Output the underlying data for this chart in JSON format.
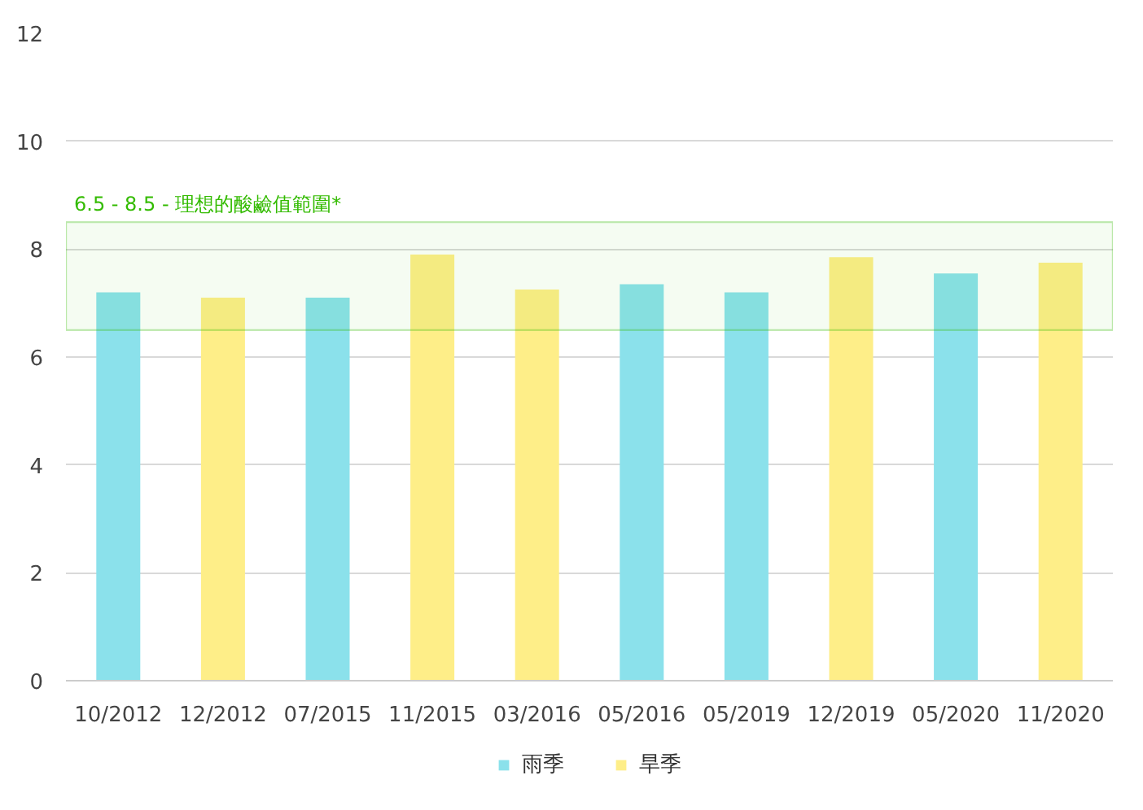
{
  "chart_data": {
    "type": "bar",
    "categories": [
      "10/2012",
      "12/2012",
      "07/2015",
      "11/2015",
      "03/2016",
      "05/2016",
      "05/2019",
      "12/2019",
      "05/2020",
      "11/2020"
    ],
    "series": [
      {
        "name": "雨季",
        "color": "#8be1eb",
        "values": [
          7.2,
          null,
          7.1,
          null,
          null,
          7.35,
          7.2,
          null,
          7.55,
          null
        ]
      },
      {
        "name": "旱季",
        "color": "#feee88",
        "values": [
          null,
          7.1,
          null,
          7.9,
          7.25,
          null,
          null,
          7.85,
          null,
          7.75
        ]
      }
    ],
    "ylim": [
      0,
      12
    ],
    "yticks": [
      0,
      2,
      4,
      6,
      8,
      10,
      12
    ],
    "grid": "y",
    "legend": "bottom",
    "bands": [
      {
        "axis": "y",
        "from": 6.5,
        "to": 8.5,
        "label": "6.5 - 8.5 - 理想的酸鹼值範圍*",
        "color": "#33bb00"
      }
    ]
  }
}
